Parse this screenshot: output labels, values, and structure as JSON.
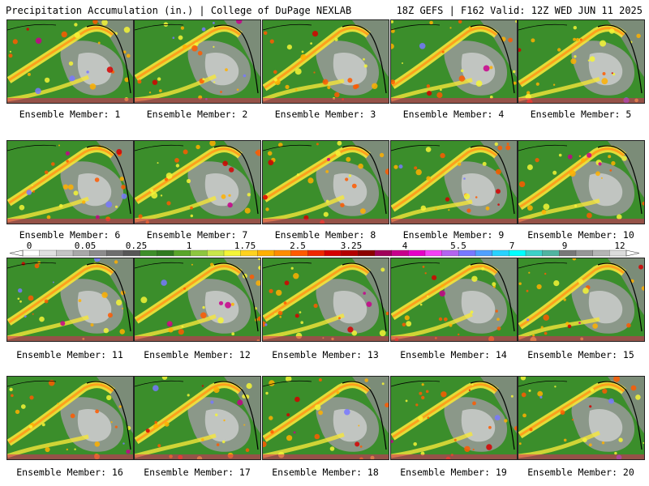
{
  "header": {
    "left_title": "Precipitation Accumulation (in.) | College of DuPage NEXLAB",
    "right_title": "18Z GEFS | F162 Valid: 12Z WED JUN 11 2025"
  },
  "colorbar": {
    "tick_labels": [
      "0",
      "0.05",
      "0.25",
      "1",
      "1.75",
      "2.5",
      "3.25",
      "4",
      "5.5",
      "7",
      "9",
      "12"
    ],
    "colors": [
      "#ffffff",
      "#e0e0e0",
      "#c4c4c4",
      "#a8a8a8",
      "#8c8c8c",
      "#6e6e6e",
      "#575757",
      "#3e8e2a",
      "#2f7a1f",
      "#59a52a",
      "#8dc63f",
      "#c8e64a",
      "#f5f536",
      "#ffd21f",
      "#ffb000",
      "#ff8c00",
      "#ff5a00",
      "#f02800",
      "#d60000",
      "#b40000",
      "#8c0000",
      "#a0005a",
      "#c8008c",
      "#e600c8",
      "#f540f5",
      "#b464f0",
      "#7878ff",
      "#50a0ff",
      "#28d2ff",
      "#00ffff",
      "#3cd2c8",
      "#50b4a0",
      "#787878",
      "#969696",
      "#b4b4b4",
      "#dcdcdc"
    ]
  },
  "panels": [
    {
      "label": "Ensemble Member: 1"
    },
    {
      "label": "Ensemble Member: 2"
    },
    {
      "label": "Ensemble Member: 3"
    },
    {
      "label": "Ensemble Member: 4"
    },
    {
      "label": "Ensemble Member: 5"
    },
    {
      "label": "Ensemble Member: 6"
    },
    {
      "label": "Ensemble Member: 7"
    },
    {
      "label": "Ensemble Member: 8"
    },
    {
      "label": "Ensemble Member: 9"
    },
    {
      "label": "Ensemble Member: 10"
    },
    {
      "label": "Ensemble Member: 11"
    },
    {
      "label": "Ensemble Member: 12"
    },
    {
      "label": "Ensemble Member: 13"
    },
    {
      "label": "Ensemble Member: 14"
    },
    {
      "label": "Ensemble Member: 15"
    },
    {
      "label": "Ensemble Member: 16"
    },
    {
      "label": "Ensemble Member: 17"
    },
    {
      "label": "Ensemble Member: 18"
    },
    {
      "label": "Ensemble Member: 19"
    },
    {
      "label": "Ensemble Member: 20"
    }
  ]
}
